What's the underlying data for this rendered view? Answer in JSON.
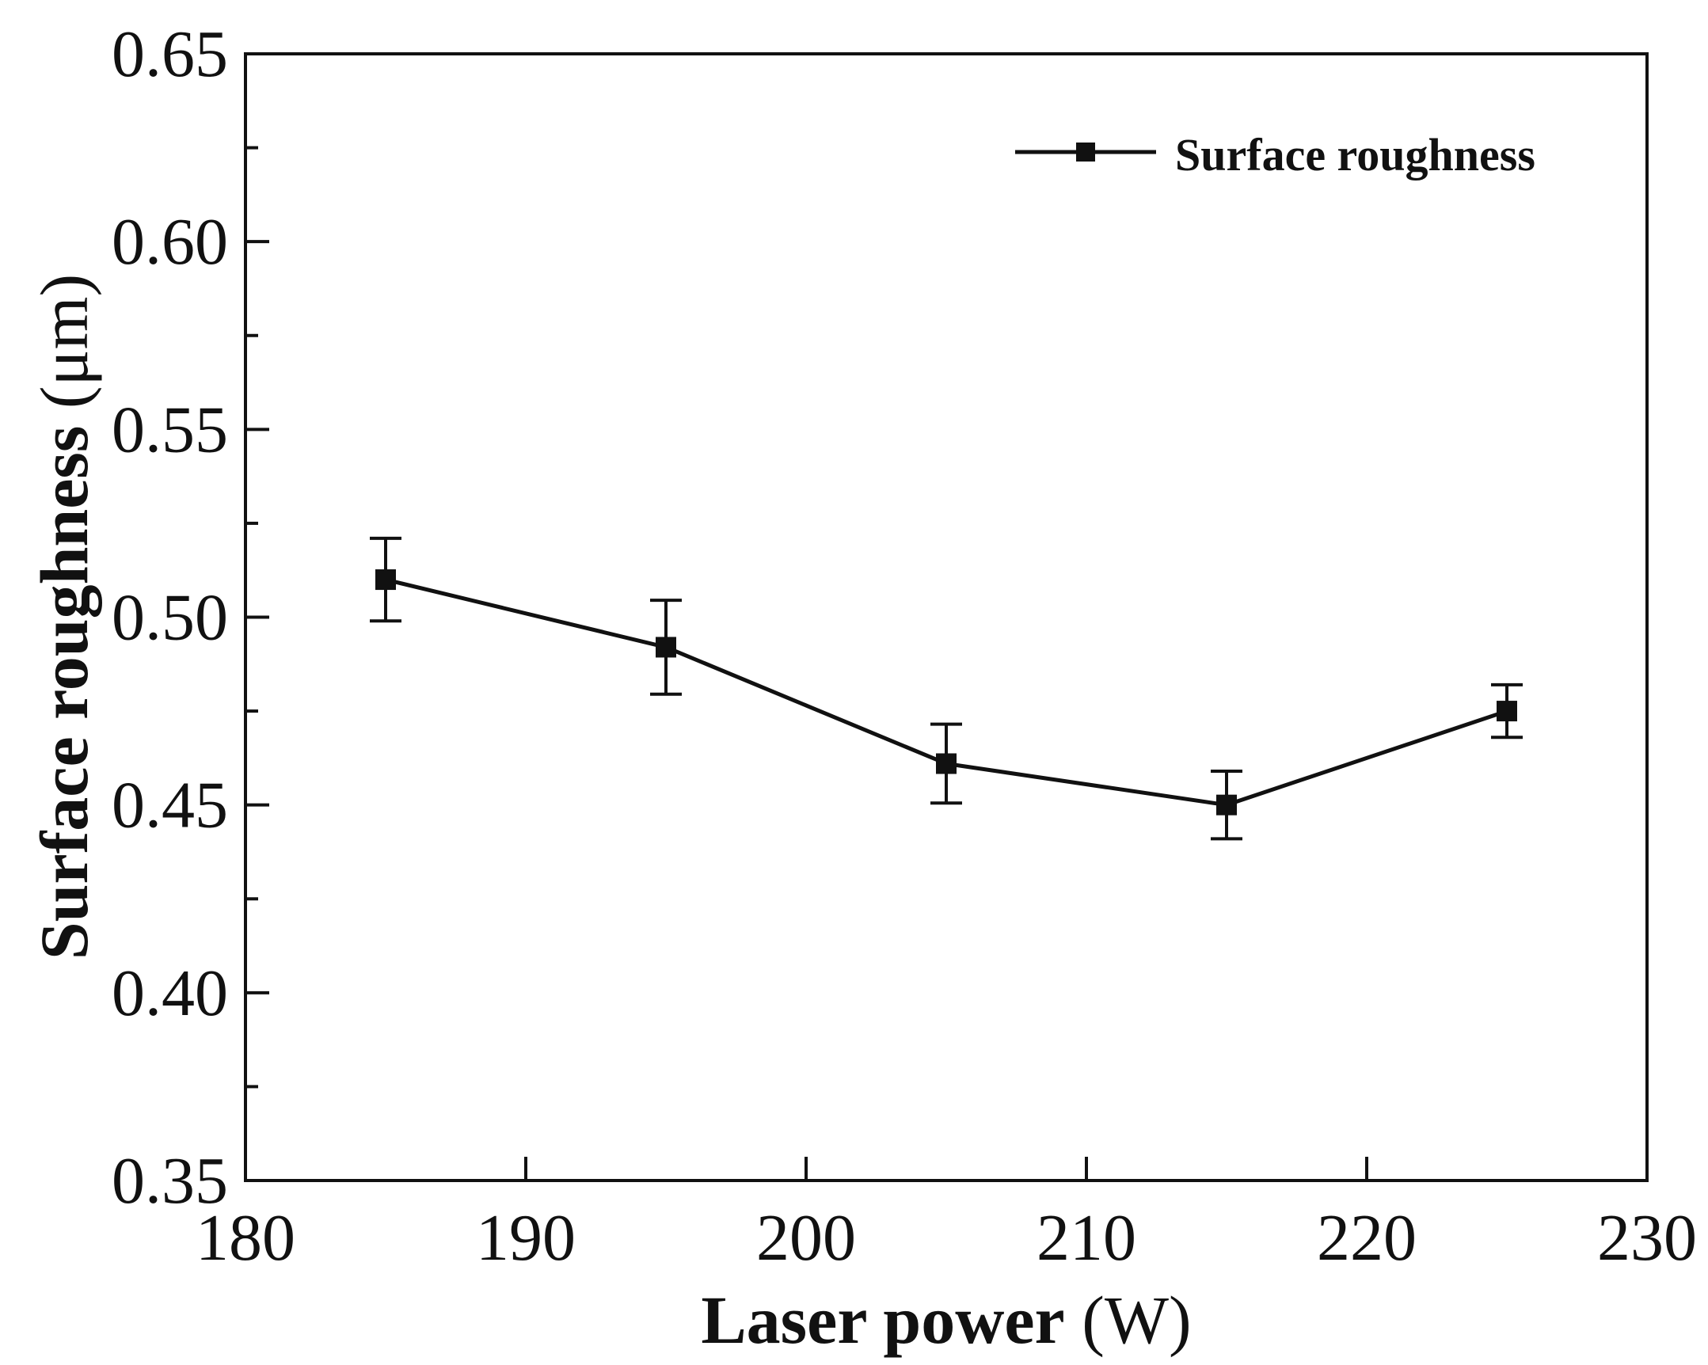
{
  "chart_data": {
    "type": "line",
    "title": "",
    "xlabel_main": "Laser power",
    "xlabel_unit": " (W)",
    "ylabel_main": "Surface roughness",
    "ylabel_unit": " (μm)",
    "xlim": [
      180,
      230
    ],
    "ylim": [
      0.35,
      0.65
    ],
    "xticks": [
      180,
      190,
      200,
      210,
      220,
      230
    ],
    "xtick_labels": [
      "180",
      "190",
      "200",
      "210",
      "220",
      "230"
    ],
    "yticks_major": [
      0.35,
      0.4,
      0.45,
      0.5,
      0.55,
      0.6,
      0.65
    ],
    "ytick_labels": [
      "0.35",
      "0.40",
      "0.45",
      "0.50",
      "0.55",
      "0.60",
      "0.65"
    ],
    "yticks_minor": [
      0.375,
      0.425,
      0.475,
      0.525,
      0.575,
      0.625
    ],
    "grid": false,
    "legend_position": "top-right",
    "series": [
      {
        "name": "Surface roughness",
        "color": "#111111",
        "marker": "square",
        "x": [
          185,
          195,
          205,
          215,
          225
        ],
        "y": [
          0.51,
          0.492,
          0.461,
          0.45,
          0.475
        ],
        "error": [
          0.011,
          0.0125,
          0.0105,
          0.009,
          0.007
        ]
      }
    ]
  }
}
